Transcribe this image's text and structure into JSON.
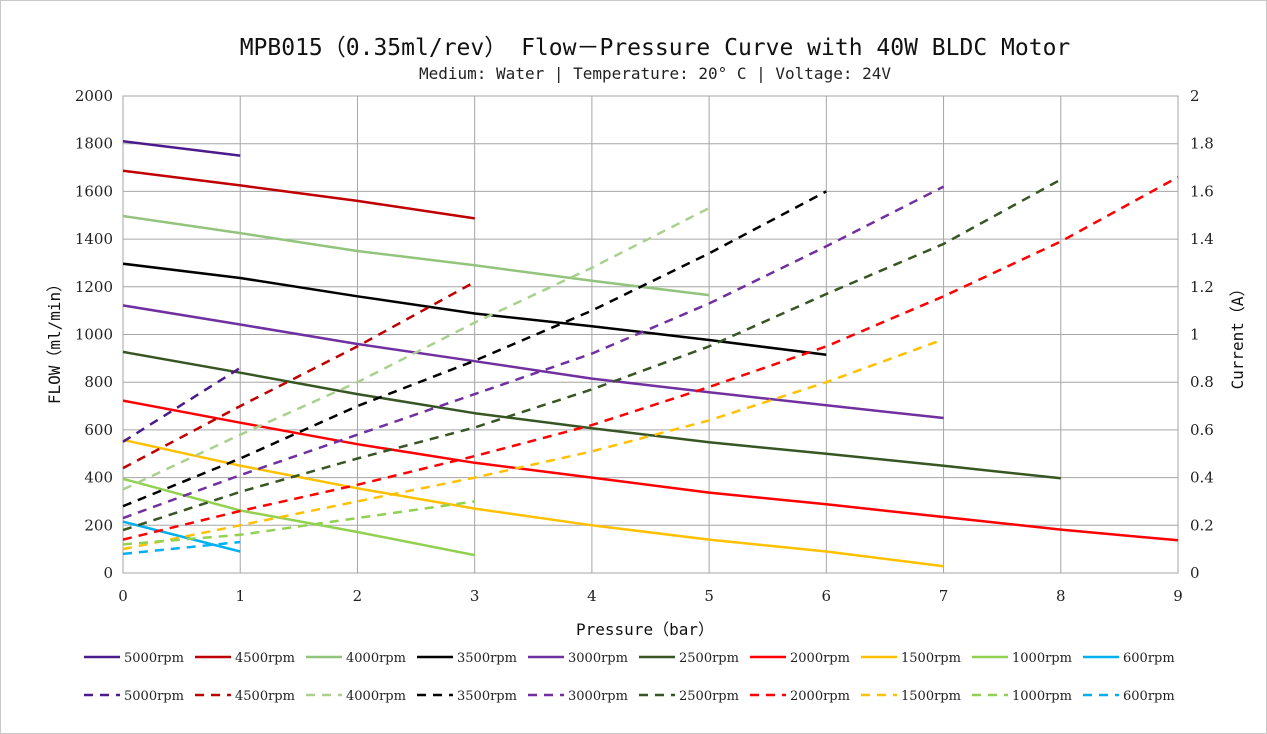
{
  "chart_data": {
    "type": "line",
    "title": "MPB015（0.35ml/rev） Flow－Pressure Curve with 40W BLDC Motor",
    "subtitle": "Medium: Water | Temperature: 20° C | Voltage: 24V",
    "xlabel": "Pressure（bar）",
    "ylabel": "FLOW（ml/min）",
    "y2label": "Current（A）",
    "xlim": [
      0,
      9
    ],
    "ylim": [
      0,
      2000
    ],
    "y2lim": [
      0,
      2
    ],
    "xticks": [
      "0",
      "1",
      "2",
      "3",
      "4",
      "5",
      "6",
      "7",
      "8",
      "9"
    ],
    "yticks": [
      "0",
      "200",
      "400",
      "600",
      "800",
      "1000",
      "1200",
      "1400",
      "1600",
      "1800",
      "2000"
    ],
    "y2ticks": [
      "0",
      "0.2",
      "0.4",
      "0.6",
      "0.8",
      "1",
      "1.2",
      "1.4",
      "1.6",
      "1.8",
      "2"
    ],
    "grid": true,
    "legend_position": "bottom",
    "flow_series": [
      {
        "name": "5000rpm",
        "color": "#4b1a8c",
        "points": [
          [
            0,
            1810
          ],
          [
            1,
            1750
          ]
        ]
      },
      {
        "name": "4500rpm",
        "color": "#c00000",
        "points": [
          [
            0,
            1687
          ],
          [
            1,
            1625
          ],
          [
            2,
            1560
          ],
          [
            3,
            1487
          ]
        ]
      },
      {
        "name": "4000rpm",
        "color": "#93c47d",
        "points": [
          [
            0,
            1497
          ],
          [
            1,
            1425
          ],
          [
            2,
            1350
          ],
          [
            3,
            1290
          ],
          [
            4,
            1225
          ],
          [
            5,
            1165
          ]
        ]
      },
      {
        "name": "3500rpm",
        "color": "#000000",
        "points": [
          [
            0,
            1297
          ],
          [
            1,
            1237
          ],
          [
            2,
            1160
          ],
          [
            3,
            1088
          ],
          [
            4,
            1035
          ],
          [
            5,
            977
          ],
          [
            6,
            915
          ]
        ]
      },
      {
        "name": "3000rpm",
        "color": "#7030a0",
        "points": [
          [
            0,
            1122
          ],
          [
            1,
            1042
          ],
          [
            2,
            960
          ],
          [
            3,
            888
          ],
          [
            4,
            815
          ],
          [
            5,
            758
          ],
          [
            6,
            703
          ],
          [
            7,
            650
          ]
        ]
      },
      {
        "name": "2500rpm",
        "color": "#375623",
        "points": [
          [
            0,
            927
          ],
          [
            1,
            840
          ],
          [
            2,
            750
          ],
          [
            3,
            670
          ],
          [
            4,
            607
          ],
          [
            5,
            548
          ],
          [
            6,
            500
          ],
          [
            7,
            450
          ],
          [
            8,
            397
          ]
        ]
      },
      {
        "name": "2000rpm",
        "color": "#ff0000",
        "points": [
          [
            0,
            723
          ],
          [
            1,
            630
          ],
          [
            2,
            540
          ],
          [
            3,
            462
          ],
          [
            4,
            400
          ],
          [
            5,
            337
          ],
          [
            6,
            288
          ],
          [
            7,
            235
          ],
          [
            8,
            182
          ],
          [
            9,
            137
          ]
        ]
      },
      {
        "name": "1500rpm",
        "color": "#ffc000",
        "points": [
          [
            0,
            558
          ],
          [
            1,
            450
          ],
          [
            2,
            355
          ],
          [
            3,
            270
          ],
          [
            4,
            200
          ],
          [
            5,
            140
          ],
          [
            6,
            90
          ],
          [
            7,
            28
          ]
        ]
      },
      {
        "name": "1000rpm",
        "color": "#92d050",
        "points": [
          [
            0,
            395
          ],
          [
            1,
            262
          ],
          [
            2,
            172
          ],
          [
            3,
            75
          ]
        ]
      },
      {
        "name": "600rpm",
        "color": "#00b0f0",
        "points": [
          [
            0,
            215
          ],
          [
            1,
            90
          ]
        ]
      }
    ],
    "current_series": [
      {
        "name": "5000rpm",
        "color": "#4b1a8c",
        "points": [
          [
            0,
            0.55
          ],
          [
            1,
            0.86
          ]
        ]
      },
      {
        "name": "4500rpm",
        "color": "#c00000",
        "points": [
          [
            0,
            0.44
          ],
          [
            1,
            0.7
          ],
          [
            2,
            0.95
          ],
          [
            3,
            1.22
          ]
        ]
      },
      {
        "name": "4000rpm",
        "color": "#a9d18e",
        "points": [
          [
            0,
            0.35
          ],
          [
            1,
            0.58
          ],
          [
            2,
            0.8
          ],
          [
            3,
            1.05
          ],
          [
            4,
            1.28
          ],
          [
            5,
            1.53
          ]
        ]
      },
      {
        "name": "3500rpm",
        "color": "#000000",
        "points": [
          [
            0,
            0.28
          ],
          [
            1,
            0.48
          ],
          [
            2,
            0.7
          ],
          [
            3,
            0.89
          ],
          [
            4,
            1.1
          ],
          [
            5,
            1.34
          ],
          [
            6,
            1.6
          ]
        ]
      },
      {
        "name": "3000rpm",
        "color": "#7030a0",
        "points": [
          [
            0,
            0.23
          ],
          [
            1,
            0.41
          ],
          [
            2,
            0.58
          ],
          [
            3,
            0.75
          ],
          [
            4,
            0.92
          ],
          [
            5,
            1.13
          ],
          [
            6,
            1.37
          ],
          [
            7,
            1.62
          ]
        ]
      },
      {
        "name": "2500rpm",
        "color": "#375623",
        "points": [
          [
            0,
            0.18
          ],
          [
            1,
            0.34
          ],
          [
            2,
            0.48
          ],
          [
            3,
            0.61
          ],
          [
            4,
            0.77
          ],
          [
            5,
            0.95
          ],
          [
            6,
            1.17
          ],
          [
            7,
            1.38
          ],
          [
            8,
            1.65
          ]
        ]
      },
      {
        "name": "2000rpm",
        "color": "#ff0000",
        "points": [
          [
            0,
            0.14
          ],
          [
            1,
            0.26
          ],
          [
            2,
            0.37
          ],
          [
            3,
            0.49
          ],
          [
            4,
            0.62
          ],
          [
            5,
            0.78
          ],
          [
            6,
            0.95
          ],
          [
            7,
            1.16
          ],
          [
            8,
            1.39
          ],
          [
            9,
            1.66
          ]
        ]
      },
      {
        "name": "1500rpm",
        "color": "#ffc000",
        "points": [
          [
            0,
            0.1
          ],
          [
            1,
            0.2
          ],
          [
            2,
            0.3
          ],
          [
            3,
            0.4
          ],
          [
            4,
            0.51
          ],
          [
            5,
            0.64
          ],
          [
            6,
            0.8
          ],
          [
            7,
            0.98
          ]
        ]
      },
      {
        "name": "1000rpm",
        "color": "#92d050",
        "points": [
          [
            0,
            0.12
          ],
          [
            1,
            0.16
          ],
          [
            2,
            0.23
          ],
          [
            3,
            0.3
          ]
        ]
      },
      {
        "name": "600rpm",
        "color": "#00b0f0",
        "points": [
          [
            0,
            0.08
          ],
          [
            1,
            0.13
          ]
        ]
      }
    ]
  }
}
